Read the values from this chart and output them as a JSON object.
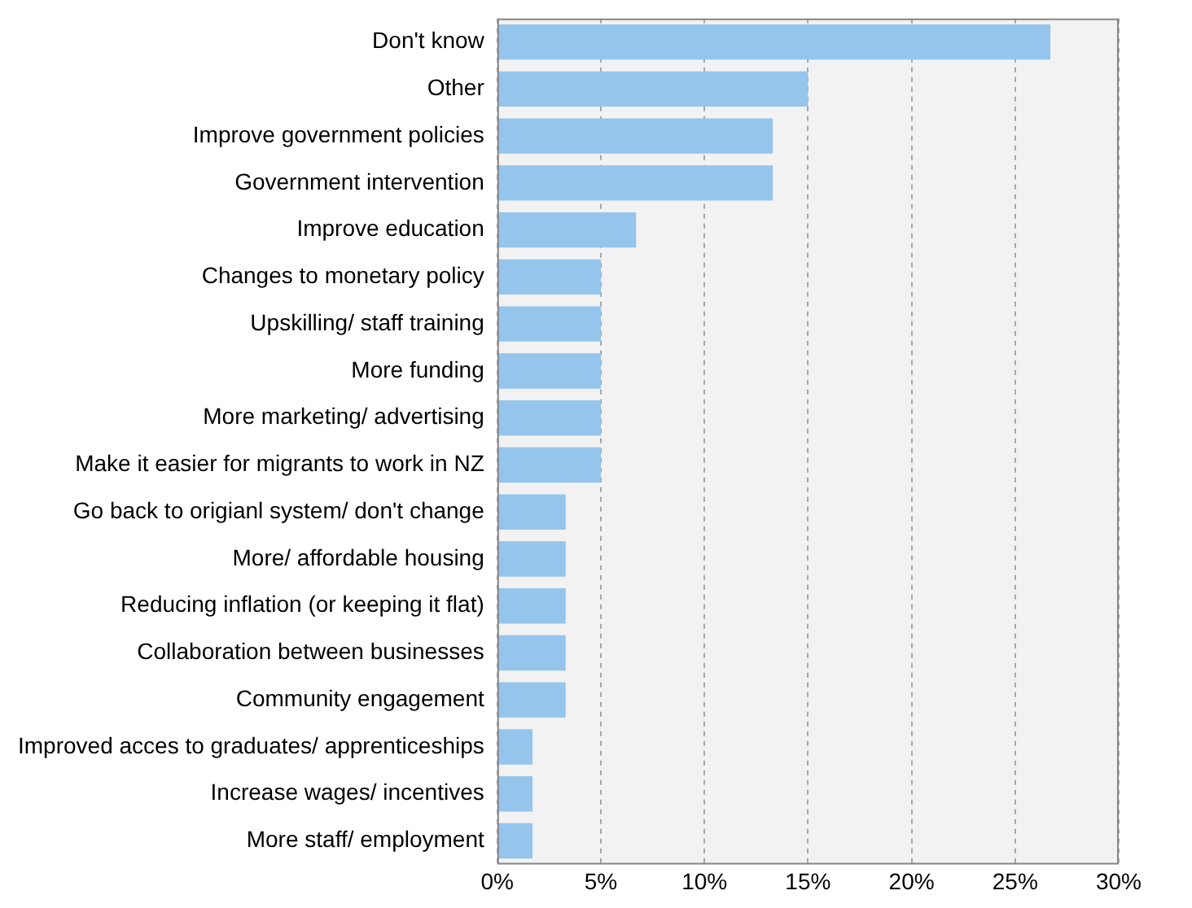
{
  "chart_data": {
    "type": "bar",
    "orientation": "horizontal",
    "categories": [
      "Don't know",
      "Other",
      "Improve government policies",
      "Government intervention",
      "Improve education",
      "Changes to monetary policy",
      "Upskilling/ staff training",
      "More funding",
      "More marketing/ advertising",
      "Make it easier for migrants to work in NZ",
      "Go back to origianl system/ don't change",
      "More/ affordable housing",
      "Reducing inflation (or keeping it flat)",
      "Collaboration between businesses",
      "Community engagement",
      "Improved acces to graduates/ apprenticeships",
      "Increase wages/ incentives",
      "More staff/ employment"
    ],
    "values": [
      26.7,
      15,
      13.3,
      13.3,
      6.7,
      5,
      5,
      5,
      5,
      5,
      3.3,
      3.3,
      3.3,
      3.3,
      3.3,
      1.7,
      1.7,
      1.7
    ],
    "color": "#95c5ec",
    "xlim": [
      0,
      30
    ],
    "xticks": [
      {
        "value": 0,
        "label": "0%"
      },
      {
        "value": 5,
        "label": "5%"
      },
      {
        "value": 10,
        "label": "10%"
      },
      {
        "value": 15,
        "label": "15%"
      },
      {
        "value": 20,
        "label": "20%"
      },
      {
        "value": 25,
        "label": "25%"
      },
      {
        "value": 30,
        "label": "30%"
      }
    ],
    "grid": "x",
    "legend": false
  }
}
